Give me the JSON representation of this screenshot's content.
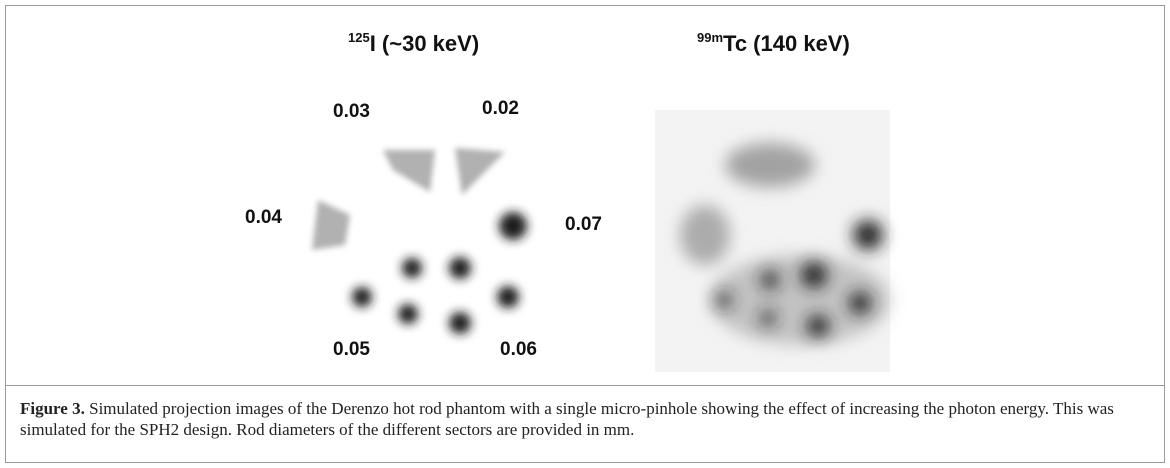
{
  "figure": {
    "panels": [
      {
        "superscript": "125",
        "title": "I (~30 keV)"
      },
      {
        "superscript": "99m",
        "title": "Tc (140 keV)"
      }
    ],
    "sector_labels": [
      "0.03",
      "0.02",
      "0.04",
      "0.07",
      "0.05",
      "0.06"
    ],
    "caption": {
      "label": "Figure 3.",
      "text": "Simulated projection images of the Derenzo hot rod phantom with a single micro-pinhole showing the effect of increasing the photon energy. This was simulated for the SPH2 design. Rod diameters of the different sectors are provided in mm."
    }
  }
}
